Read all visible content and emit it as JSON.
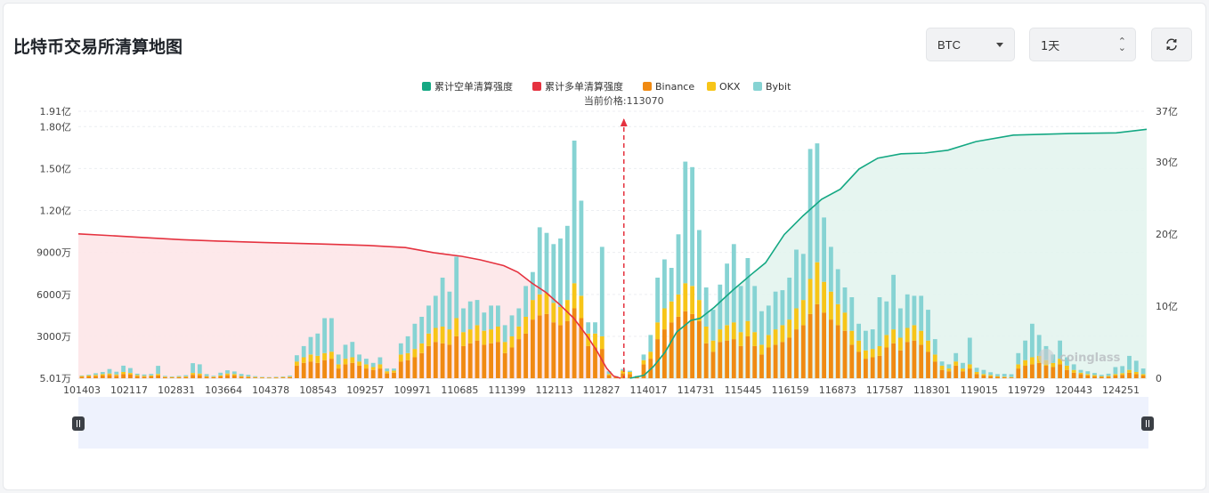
{
  "header": {
    "title": "比特币交易所清算地图",
    "coin_select": "BTC",
    "period_select": "1天"
  },
  "colors": {
    "short_line": "#14a883",
    "long_line": "#e5323f",
    "binance": "#f08a12",
    "okx": "#f7c518",
    "bybit": "#86d3d3",
    "short_fill": "#e3f4ee",
    "long_fill": "#fde6e8",
    "slider_bg": "#eef2fd"
  },
  "watermark": "coinglass",
  "chart_data": {
    "type": "bar",
    "legend": [
      "累计空单清算强度",
      "累计多单清算强度",
      "Binance",
      "OKX",
      "Bybit"
    ],
    "current_price_label": "当前价格:113070",
    "current_price": 113070,
    "x_tick_labels": [
      "101403",
      "102117",
      "102831",
      "103664",
      "104378",
      "108543",
      "109257",
      "109971",
      "110685",
      "111399",
      "112113",
      "112827",
      "114017",
      "114731",
      "115445",
      "116159",
      "116873",
      "117587",
      "118301",
      "119015",
      "119729",
      "120443",
      "124251"
    ],
    "y_left_tick_labels": [
      "5.01万",
      "3000万",
      "6000万",
      "9000万",
      "1.20亿",
      "1.50亿",
      "1.80亿",
      "1.91亿"
    ],
    "y_left_unit": "万 (10k USD)",
    "y_left_range": [
      5.01,
      19100
    ],
    "y_right_tick_labels": [
      "0",
      "10亿",
      "20亿",
      "30亿",
      "37亿"
    ],
    "y_right_range": [
      0,
      37
    ],
    "x_price_range": [
      101403,
      124251
    ],
    "bars": [
      {
        "b": 110,
        "o": 50,
        "y": 40
      },
      {
        "b": 130,
        "o": 70,
        "y": 60
      },
      {
        "b": 160,
        "o": 80,
        "y": 120
      },
      {
        "b": 200,
        "o": 100,
        "y": 150
      },
      {
        "b": 230,
        "o": 110,
        "y": 320
      },
      {
        "b": 180,
        "o": 90,
        "y": 200
      },
      {
        "b": 300,
        "o": 150,
        "y": 450
      },
      {
        "b": 260,
        "o": 120,
        "y": 350
      },
      {
        "b": 150,
        "o": 80,
        "y": 100
      },
      {
        "b": 110,
        "o": 60,
        "y": 100
      },
      {
        "b": 130,
        "o": 70,
        "y": 110
      },
      {
        "b": 200,
        "o": 110,
        "y": 580
      },
      {
        "b": 80,
        "o": 40,
        "y": 50
      },
      {
        "b": 60,
        "o": 30,
        "y": 40
      },
      {
        "b": 70,
        "o": 40,
        "y": 60
      },
      {
        "b": 90,
        "o": 50,
        "y": 80
      },
      {
        "b": 250,
        "o": 130,
        "y": 700
      },
      {
        "b": 220,
        "o": 120,
        "y": 660
      },
      {
        "b": 100,
        "o": 50,
        "y": 150
      },
      {
        "b": 80,
        "o": 40,
        "y": 60
      },
      {
        "b": 130,
        "o": 70,
        "y": 200
      },
      {
        "b": 220,
        "o": 120,
        "y": 230
      },
      {
        "b": 200,
        "o": 100,
        "y": 190
      },
      {
        "b": 110,
        "o": 50,
        "y": 150
      },
      {
        "b": 90,
        "o": 40,
        "y": 120
      },
      {
        "b": 60,
        "o": 30,
        "y": 60
      },
      {
        "b": 50,
        "o": 20,
        "y": 30
      },
      {
        "b": 40,
        "o": 20,
        "y": 30
      },
      {
        "b": 50,
        "o": 30,
        "y": 30
      },
      {
        "b": 60,
        "o": 30,
        "y": 40
      },
      {
        "b": 80,
        "o": 40,
        "y": 70
      },
      {
        "b": 900,
        "o": 300,
        "y": 450
      },
      {
        "b": 1100,
        "o": 400,
        "y": 800
      },
      {
        "b": 1200,
        "o": 500,
        "y": 1250
      },
      {
        "b": 1100,
        "o": 500,
        "y": 1600
      },
      {
        "b": 1300,
        "o": 500,
        "y": 2500
      },
      {
        "b": 1400,
        "o": 500,
        "y": 2400
      },
      {
        "b": 700,
        "o": 300,
        "y": 700
      },
      {
        "b": 1000,
        "o": 400,
        "y": 1000
      },
      {
        "b": 1100,
        "o": 400,
        "y": 1100
      },
      {
        "b": 900,
        "o": 300,
        "y": 500
      },
      {
        "b": 700,
        "o": 300,
        "y": 400
      },
      {
        "b": 600,
        "o": 200,
        "y": 300
      },
      {
        "b": 700,
        "o": 300,
        "y": 500
      },
      {
        "b": 350,
        "o": 150,
        "y": 200
      },
      {
        "b": 400,
        "o": 150,
        "y": 150
      },
      {
        "b": 1200,
        "o": 500,
        "y": 800
      },
      {
        "b": 1300,
        "o": 500,
        "y": 1200
      },
      {
        "b": 1500,
        "o": 600,
        "y": 1800
      },
      {
        "b": 1800,
        "o": 700,
        "y": 1900
      },
      {
        "b": 2300,
        "o": 900,
        "y": 2000
      },
      {
        "b": 2600,
        "o": 1000,
        "y": 2300
      },
      {
        "b": 2500,
        "o": 1200,
        "y": 3500
      },
      {
        "b": 2400,
        "o": 1100,
        "y": 2700
      },
      {
        "b": 3000,
        "o": 1300,
        "y": 4400
      },
      {
        "b": 2300,
        "o": 1000,
        "y": 1700
      },
      {
        "b": 2500,
        "o": 1000,
        "y": 2000
      },
      {
        "b": 2700,
        "o": 1100,
        "y": 1800
      },
      {
        "b": 2400,
        "o": 1000,
        "y": 1300
      },
      {
        "b": 2500,
        "o": 1000,
        "y": 1700
      },
      {
        "b": 2600,
        "o": 1100,
        "y": 1500
      },
      {
        "b": 1800,
        "o": 800,
        "y": 1200
      },
      {
        "b": 2200,
        "o": 800,
        "y": 1500
      },
      {
        "b": 2800,
        "o": 900,
        "y": 1300
      },
      {
        "b": 3200,
        "o": 1200,
        "y": 2200
      },
      {
        "b": 4200,
        "o": 1400,
        "y": 2000
      },
      {
        "b": 4500,
        "o": 1500,
        "y": 4800
      },
      {
        "b": 4600,
        "o": 1500,
        "y": 4300
      },
      {
        "b": 4000,
        "o": 1400,
        "y": 4200
      },
      {
        "b": 3800,
        "o": 1300,
        "y": 4900
      },
      {
        "b": 4100,
        "o": 1500,
        "y": 5300
      },
      {
        "b": 5000,
        "o": 1800,
        "y": 10200
      },
      {
        "b": 4300,
        "o": 1600,
        "y": 6800
      },
      {
        "b": 2300,
        "o": 900,
        "y": 800
      },
      {
        "b": 2200,
        "o": 1000,
        "y": 800
      },
      {
        "b": 2100,
        "o": 900,
        "y": 6400
      },
      {
        "b": 200,
        "o": 100,
        "y": 200
      },
      {
        "b": 80,
        "o": 40,
        "y": 40
      },
      {
        "b": 350,
        "o": 200,
        "y": 120
      },
      {
        "b": 300,
        "o": 150,
        "y": 90
      },
      {
        "b": 100,
        "o": 50,
        "y": 30
      },
      {
        "b": 1000,
        "o": 300,
        "y": 400
      },
      {
        "b": 1400,
        "o": 500,
        "y": 1200
      },
      {
        "b": 2800,
        "o": 1200,
        "y": 3200
      },
      {
        "b": 3500,
        "o": 1500,
        "y": 3500
      },
      {
        "b": 4000,
        "o": 1500,
        "y": 2400
      },
      {
        "b": 4400,
        "o": 1600,
        "y": 4300
      },
      {
        "b": 4800,
        "o": 2000,
        "y": 8700
      },
      {
        "b": 4600,
        "o": 2000,
        "y": 8500
      },
      {
        "b": 4100,
        "o": 1500,
        "y": 5000
      },
      {
        "b": 2500,
        "o": 1200,
        "y": 2800
      },
      {
        "b": 1900,
        "o": 800,
        "y": 2200
      },
      {
        "b": 2600,
        "o": 900,
        "y": 3200
      },
      {
        "b": 2700,
        "o": 1100,
        "y": 4400
      },
      {
        "b": 2800,
        "o": 1200,
        "y": 5600
      },
      {
        "b": 2300,
        "o": 1000,
        "y": 3300
      },
      {
        "b": 3000,
        "o": 1100,
        "y": 4500
      },
      {
        "b": 2300,
        "o": 1000,
        "y": 3300
      },
      {
        "b": 1700,
        "o": 700,
        "y": 2400
      },
      {
        "b": 2200,
        "o": 900,
        "y": 2100
      },
      {
        "b": 2400,
        "o": 1100,
        "y": 2700
      },
      {
        "b": 2600,
        "o": 1200,
        "y": 2500
      },
      {
        "b": 2900,
        "o": 1300,
        "y": 3000
      },
      {
        "b": 3500,
        "o": 1500,
        "y": 4200
      },
      {
        "b": 3800,
        "o": 1800,
        "y": 3300
      },
      {
        "b": 4600,
        "o": 2500,
        "y": 9300
      },
      {
        "b": 5300,
        "o": 3000,
        "y": 8500
      },
      {
        "b": 4700,
        "o": 2200,
        "y": 4600
      },
      {
        "b": 4200,
        "o": 2000,
        "y": 3200
      },
      {
        "b": 3800,
        "o": 1500,
        "y": 2500
      },
      {
        "b": 3400,
        "o": 1300,
        "y": 1800
      },
      {
        "b": 2400,
        "o": 1000,
        "y": 2400
      },
      {
        "b": 1900,
        "o": 800,
        "y": 1200
      },
      {
        "b": 1400,
        "o": 600,
        "y": 1400
      },
      {
        "b": 1500,
        "o": 600,
        "y": 1400
      },
      {
        "b": 1600,
        "o": 700,
        "y": 3500
      },
      {
        "b": 2200,
        "o": 900,
        "y": 2400
      },
      {
        "b": 2500,
        "o": 1000,
        "y": 3900
      },
      {
        "b": 2000,
        "o": 900,
        "y": 2100
      },
      {
        "b": 2600,
        "o": 1000,
        "y": 2400
      },
      {
        "b": 2700,
        "o": 1100,
        "y": 2100
      },
      {
        "b": 2400,
        "o": 1000,
        "y": 2500
      },
      {
        "b": 1900,
        "o": 800,
        "y": 2200
      },
      {
        "b": 1200,
        "o": 500,
        "y": 1100
      },
      {
        "b": 600,
        "o": 300,
        "y": 300
      },
      {
        "b": 500,
        "o": 200,
        "y": 300
      },
      {
        "b": 900,
        "o": 300,
        "y": 600
      },
      {
        "b": 500,
        "o": 200,
        "y": 400
      },
      {
        "b": 700,
        "o": 300,
        "y": 1900
      },
      {
        "b": 300,
        "o": 150,
        "y": 300
      },
      {
        "b": 200,
        "o": 100,
        "y": 300
      },
      {
        "b": 150,
        "o": 80,
        "y": 200
      },
      {
        "b": 100,
        "o": 50,
        "y": 150
      },
      {
        "b": 80,
        "o": 40,
        "y": 200
      },
      {
        "b": 60,
        "o": 30,
        "y": 200
      },
      {
        "b": 700,
        "o": 300,
        "y": 800
      },
      {
        "b": 900,
        "o": 400,
        "y": 1400
      },
      {
        "b": 1000,
        "o": 500,
        "y": 2400
      },
      {
        "b": 1100,
        "o": 500,
        "y": 1500
      },
      {
        "b": 900,
        "o": 400,
        "y": 1000
      },
      {
        "b": 800,
        "o": 300,
        "y": 600
      },
      {
        "b": 1000,
        "o": 400,
        "y": 1300
      },
      {
        "b": 600,
        "o": 300,
        "y": 600
      },
      {
        "b": 400,
        "o": 200,
        "y": 400
      },
      {
        "b": 300,
        "o": 100,
        "y": 200
      },
      {
        "b": 200,
        "o": 100,
        "y": 200
      },
      {
        "b": 150,
        "o": 80,
        "y": 150
      },
      {
        "b": 100,
        "o": 50,
        "y": 100
      },
      {
        "b": 120,
        "o": 60,
        "y": 150
      },
      {
        "b": 200,
        "o": 100,
        "y": 500
      },
      {
        "b": 250,
        "o": 120,
        "y": 500
      },
      {
        "b": 400,
        "o": 200,
        "y": 1000
      },
      {
        "b": 300,
        "o": 150,
        "y": 800
      },
      {
        "b": 200,
        "o": 100,
        "y": 400
      }
    ],
    "cumulative_long": [
      [
        101403,
        20.0
      ],
      [
        102000,
        19.8
      ],
      [
        102800,
        19.5
      ],
      [
        103600,
        19.2
      ],
      [
        104400,
        19.0
      ],
      [
        105400,
        18.8
      ],
      [
        106600,
        18.6
      ],
      [
        107600,
        18.4
      ],
      [
        108400,
        18.1
      ],
      [
        109000,
        17.4
      ],
      [
        109600,
        16.9
      ],
      [
        110000,
        16.4
      ],
      [
        110500,
        15.6
      ],
      [
        110800,
        14.7
      ],
      [
        111100,
        13.2
      ],
      [
        111400,
        11.9
      ],
      [
        111700,
        10.2
      ],
      [
        112000,
        8.3
      ],
      [
        112300,
        5.7
      ],
      [
        112500,
        3.7
      ],
      [
        112700,
        1.4
      ],
      [
        112850,
        0.3
      ],
      [
        113000,
        0.0
      ]
    ],
    "cumulative_short": [
      [
        113200,
        0.0
      ],
      [
        113500,
        0.4
      ],
      [
        113700,
        1.6
      ],
      [
        113950,
        3.6
      ],
      [
        114200,
        6.4
      ],
      [
        114500,
        8.0
      ],
      [
        114700,
        8.3
      ],
      [
        115000,
        9.8
      ],
      [
        115400,
        12.2
      ],
      [
        115800,
        14.4
      ],
      [
        116100,
        16.0
      ],
      [
        116500,
        19.9
      ],
      [
        116900,
        22.5
      ],
      [
        117300,
        24.8
      ],
      [
        117700,
        26.2
      ],
      [
        118100,
        29.0
      ],
      [
        118500,
        30.5
      ],
      [
        119000,
        31.1
      ],
      [
        119500,
        31.2
      ],
      [
        120000,
        31.6
      ],
      [
        120600,
        32.8
      ],
      [
        121400,
        33.7
      ],
      [
        122600,
        33.9
      ],
      [
        123600,
        34.0
      ],
      [
        124251,
        34.5
      ]
    ]
  }
}
